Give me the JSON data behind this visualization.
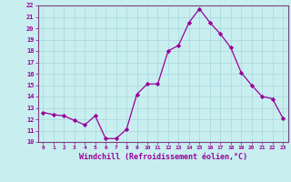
{
  "x": [
    0,
    1,
    2,
    3,
    4,
    5,
    6,
    7,
    8,
    9,
    10,
    11,
    12,
    13,
    14,
    15,
    16,
    17,
    18,
    19,
    20,
    21,
    22,
    23
  ],
  "y": [
    12.6,
    12.4,
    12.3,
    11.9,
    11.5,
    12.3,
    10.3,
    10.3,
    11.1,
    14.2,
    15.1,
    15.1,
    18.0,
    18.5,
    20.5,
    21.7,
    20.5,
    19.5,
    18.3,
    16.1,
    15.0,
    14.0,
    13.8,
    12.1
  ],
  "xlabel": "Windchill (Refroidissement éolien,°C)",
  "ylim": [
    10,
    22
  ],
  "xlim": [
    -0.5,
    23.5
  ],
  "yticks": [
    10,
    11,
    12,
    13,
    14,
    15,
    16,
    17,
    18,
    19,
    20,
    21,
    22
  ],
  "xticks": [
    0,
    1,
    2,
    3,
    4,
    5,
    6,
    7,
    8,
    9,
    10,
    11,
    12,
    13,
    14,
    15,
    16,
    17,
    18,
    19,
    20,
    21,
    22,
    23
  ],
  "line_color": "#990099",
  "marker_color": "#990099",
  "bg_color": "#C8EEF0",
  "grid_color": "#A8D8DC",
  "spine_color": "#7B4080"
}
